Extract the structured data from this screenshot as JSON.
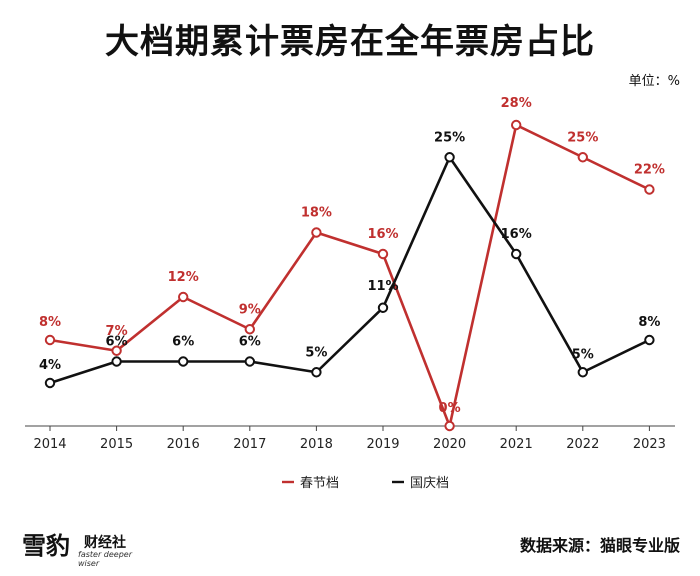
{
  "title": "大档期累计票房在全年票房占比",
  "unit_label": "单位：%",
  "source": "数据来源：猫眼专业版",
  "logo": {
    "mark": "雪豹",
    "name": "财经社",
    "tagline": "faster deeper wiser"
  },
  "colors": {
    "spring": "#c0302f",
    "national": "#111111",
    "axis": "#444444"
  },
  "chart_data": {
    "type": "line",
    "title": "大档期累计票房在全年票房占比",
    "categories": [
      "2014",
      "2015",
      "2016",
      "2017",
      "2018",
      "2019",
      "2020",
      "2021",
      "2022",
      "2023"
    ],
    "ylim": [
      0,
      25
    ],
    "grid": false,
    "legend_position": "bottom",
    "series": [
      {
        "name": "春节档",
        "color": "#c0302f",
        "values": [
          8,
          7,
          12,
          9,
          18,
          16,
          0,
          28,
          25,
          22
        ],
        "labels": [
          "8%",
          "7%",
          "12%",
          "9%",
          "18%",
          "16%",
          "0%",
          "28%",
          "25%",
          "22%"
        ]
      },
      {
        "name": "国庆档",
        "color": "#111111",
        "values": [
          4,
          6,
          6,
          6,
          5,
          11,
          25,
          16,
          5,
          8
        ],
        "labels": [
          "4%",
          "6%",
          "6%",
          "6%",
          "5%",
          "11%",
          "25%",
          "16%",
          "5%",
          "8%"
        ]
      }
    ]
  }
}
